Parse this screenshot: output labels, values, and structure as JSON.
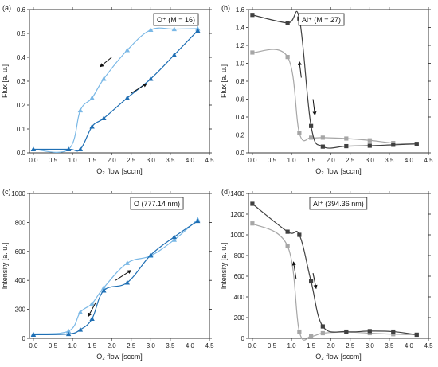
{
  "chart_data": [
    {
      "panel": "(a)",
      "type": "line",
      "legend": "O⁺ (M = 16)",
      "xlabel": "O₂ flow [sccm]",
      "ylabel": "Flux [a. u.]",
      "xlim": [
        -0.1,
        4.5
      ],
      "ylim": [
        0,
        0.6
      ],
      "xticks": [
        0.0,
        0.5,
        1.0,
        1.5,
        2.0,
        2.5,
        3.0,
        3.5,
        4.0,
        4.5
      ],
      "yticks": [
        0.0,
        0.1,
        0.2,
        0.3,
        0.4,
        0.5,
        0.6
      ],
      "series": [
        {
          "color": "#7ab8e6",
          "marker": "triangle",
          "x": [
            0.0,
            0.9,
            1.2,
            1.5,
            1.8,
            2.4,
            3.0,
            3.6,
            4.2
          ],
          "y": [
            0.015,
            0.015,
            0.178,
            0.23,
            0.31,
            0.43,
            0.515,
            0.518,
            0.52
          ]
        },
        {
          "color": "#1f6fb4",
          "marker": "triangle",
          "x": [
            0.0,
            0.9,
            1.2,
            1.5,
            1.8,
            2.4,
            3.0,
            3.6,
            4.2
          ],
          "y": [
            0.015,
            0.015,
            0.015,
            0.11,
            0.145,
            0.23,
            0.31,
            0.41,
            0.512
          ]
        }
      ]
    },
    {
      "panel": "(b)",
      "type": "line",
      "legend": "Al⁺ (M = 27)",
      "xlabel": "O₂ flow [sccm]",
      "ylabel": "Flux [a. u.]",
      "xlim": [
        -0.1,
        4.5
      ],
      "ylim": [
        0,
        1.6
      ],
      "xticks": [
        0.0,
        0.5,
        1.0,
        1.5,
        2.0,
        2.5,
        3.0,
        3.5,
        4.0,
        4.5
      ],
      "yticks": [
        0.0,
        0.2,
        0.4,
        0.6,
        0.8,
        1.0,
        1.2,
        1.4,
        1.6
      ],
      "series": [
        {
          "color": "#a6a6a6",
          "marker": "square",
          "x": [
            0.0,
            0.9,
            1.2,
            1.5,
            1.8,
            2.4,
            3.0,
            3.6,
            4.2
          ],
          "y": [
            1.12,
            1.07,
            0.22,
            0.17,
            0.17,
            0.16,
            0.14,
            0.11,
            0.1
          ]
        },
        {
          "color": "#404040",
          "marker": "square",
          "x": [
            0.0,
            0.9,
            1.2,
            1.5,
            1.8,
            2.4,
            3.0,
            3.6,
            4.2
          ],
          "y": [
            1.54,
            1.45,
            1.5,
            0.3,
            0.07,
            0.075,
            0.08,
            0.09,
            0.1
          ]
        }
      ]
    },
    {
      "panel": "(c)",
      "type": "line",
      "legend": "O (777.14 nm)",
      "xlabel": "O₂ flow [sccm]",
      "ylabel": "Intensity [a. u.]",
      "xlim": [
        -0.1,
        4.5
      ],
      "ylim": [
        0,
        1000
      ],
      "xticks": [
        0.0,
        0.5,
        1.0,
        1.5,
        2.0,
        2.5,
        3.0,
        3.5,
        4.0,
        4.5
      ],
      "yticks": [
        0,
        200,
        400,
        600,
        800,
        1000
      ],
      "series": [
        {
          "color": "#7ab8e6",
          "marker": "triangle",
          "x": [
            0.0,
            0.9,
            1.2,
            1.5,
            1.8,
            2.4,
            3.0,
            3.6,
            4.2
          ],
          "y": [
            30,
            50,
            180,
            240,
            350,
            520,
            570,
            680,
            820
          ]
        },
        {
          "color": "#1f6fb4",
          "marker": "triangle",
          "x": [
            0.0,
            0.9,
            1.2,
            1.5,
            1.8,
            2.4,
            3.0,
            3.6,
            4.2
          ],
          "y": [
            25,
            30,
            60,
            135,
            330,
            385,
            575,
            700,
            810
          ]
        }
      ]
    },
    {
      "panel": "(d)",
      "type": "line",
      "legend": "Al⁺ (394.36 nm)",
      "xlabel": "O₂ flow [sccm]",
      "ylabel": "Intensity [a. u.]",
      "xlim": [
        -0.1,
        4.5
      ],
      "ylim": [
        0,
        1400
      ],
      "xticks": [
        0.0,
        0.5,
        1.0,
        1.5,
        2.0,
        2.5,
        3.0,
        3.5,
        4.0,
        4.5
      ],
      "yticks": [
        0,
        200,
        400,
        600,
        800,
        1000,
        1200,
        1400
      ],
      "series": [
        {
          "color": "#a6a6a6",
          "marker": "square",
          "x": [
            0.0,
            0.9,
            1.2,
            1.5,
            1.8,
            2.4,
            3.0,
            3.6,
            4.2
          ],
          "y": [
            1110,
            890,
            65,
            20,
            50,
            60,
            50,
            40,
            35
          ]
        },
        {
          "color": "#404040",
          "marker": "square",
          "x": [
            0.0,
            0.9,
            1.2,
            1.5,
            1.8,
            2.4,
            3.0,
            3.6,
            4.2
          ],
          "y": [
            1300,
            1030,
            1000,
            550,
            115,
            65,
            70,
            65,
            35
          ]
        }
      ]
    }
  ]
}
